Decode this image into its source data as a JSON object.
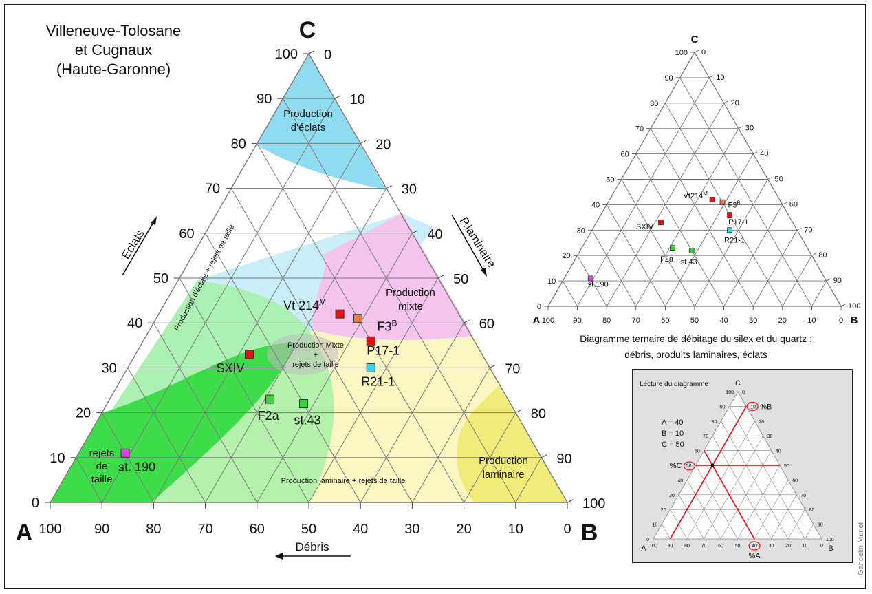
{
  "title_lines": [
    "Villeneuve-Tolosane",
    "et Cugnaux",
    "(Haute-Garonne)"
  ],
  "vertex_labels": {
    "a": "A",
    "b": "B",
    "c": "C"
  },
  "axis_labels": {
    "left": "Eclats",
    "right": "P.laminaire",
    "bottom": "Débris"
  },
  "ticks": [
    "0",
    "10",
    "20",
    "30",
    "40",
    "50",
    "60",
    "70",
    "80",
    "90",
    "100"
  ],
  "zones": {
    "eclats": "Production d'éclats",
    "eclats_rejets": "Production d'éclats + rejets de taille",
    "mixte": "Production mixte",
    "mixte_rejets": "Production Mixte + rejets de taille",
    "laminaire": "Production laminaire",
    "laminaire_rejets": "Production laminaire + rejets de taille",
    "rejets": "rejets de taille"
  },
  "zone_colors": {
    "eclats": "#8fdcf0",
    "eclats_rejets": "#c9eef8",
    "mixte": "#f4c4ec",
    "laminaire_rejets": "#fbf7c2",
    "laminaire": "#f0ec7a",
    "rejets": "#3edc4a",
    "rejets_light": "#a8f0a8"
  },
  "points": [
    {
      "label": "Vt 214",
      "sup": "M",
      "small_label": "Vt214",
      "a": 23,
      "b": 35,
      "c": 42,
      "color": "#e81010"
    },
    {
      "label": "F3",
      "sup": "B",
      "small_label": "F3",
      "a": 20,
      "b": 39,
      "c": 41,
      "color": "#f07a40"
    },
    {
      "label": "P17-1",
      "sup": "",
      "small_label": "P17-1",
      "a": 20,
      "b": 44,
      "c": 36,
      "color": "#e81010"
    },
    {
      "label": "R21-1",
      "sup": "",
      "small_label": "R21-1",
      "a": 23,
      "b": 47,
      "c": 30,
      "color": "#30d8f0"
    },
    {
      "label": "SXIV",
      "sup": "",
      "small_label": "SXIV",
      "a": 45,
      "b": 22,
      "c": 33,
      "color": "#e81010"
    },
    {
      "label": "F2a",
      "sup": "",
      "small_label": "F2a",
      "a": 46,
      "b": 31,
      "c": 23,
      "color": "#38d838"
    },
    {
      "label": "st.43",
      "sup": "",
      "small_label": "st.43",
      "a": 40,
      "b": 38,
      "c": 22,
      "color": "#38d838"
    },
    {
      "label": "st. 190",
      "sup": "",
      "small_label": "st.190",
      "a": 80,
      "b": 9,
      "c": 11,
      "color": "#e040e0"
    }
  ],
  "small_caption": "Diagramme ternaire de débitage du silex et du quartz : débris, produits laminaires, éclats",
  "reading": {
    "title": "Lecture du diagramme",
    "lines": [
      "A = 40",
      "B = 10",
      "C = 50"
    ],
    "pct_a": "%A",
    "pct_b": "%B",
    "pct_c": "%C"
  },
  "credit": "Gandelin Muriel"
}
